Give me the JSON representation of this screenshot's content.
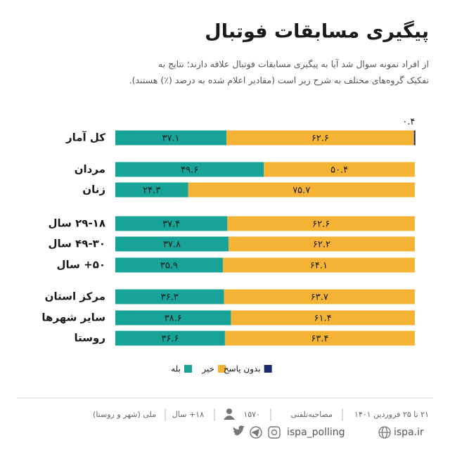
{
  "chart_data": {
    "type": "stacked-barh",
    "title": "پیگیری مسابقات فوتبال",
    "subtitle": [
      "از افراد نمونه سوال شد آیا به پیگیری مسابقات فوتبال علاقه دارند؛ نتایج به",
      "تفکیک گروه‌های مختلف به شرح زیر است (مقادیر اعلام شده به درصد (٪) هستند)."
    ],
    "categories": [
      "کل آمار",
      "مردان",
      "زنان",
      "۲۹-۱۸ سال",
      "۴۹-۳۰ سال",
      "۵۰+ سال",
      "مرکز استان",
      "سایر شهرها",
      "روستا"
    ],
    "xlim": [
      0,
      100
    ],
    "series": [
      {
        "name": "بله",
        "color": "#17a398",
        "values": [
          37.1,
          49.6,
          24.3,
          37.4,
          37.8,
          35.9,
          36.3,
          38.6,
          36.6
        ],
        "value_labels": [
          "۳۷.۱",
          "۴۹.۶",
          "۲۴.۳",
          "۳۷.۴",
          "۳۷.۸",
          "۳۵.۹",
          "۳۶.۳",
          "۳۸.۶",
          "۳۶.۶"
        ]
      },
      {
        "name": "خیر",
        "color": "#f5b335",
        "values": [
          62.6,
          50.4,
          75.7,
          62.6,
          62.2,
          64.1,
          63.7,
          61.4,
          63.4
        ],
        "value_labels": [
          "۶۲.۶",
          "۵۰.۴",
          "۷۵.۷",
          "۶۲.۶",
          "۶۲.۲",
          "۶۴.۱",
          "۶۳.۷",
          "۶۱.۴",
          "۶۳.۴"
        ]
      },
      {
        "name": "بدون پاسخ",
        "color": "#1b2a6b",
        "values": [
          0.4,
          null,
          null,
          null,
          null,
          null,
          null,
          null,
          null
        ],
        "value_labels": [
          "۰.۴",
          null,
          null,
          null,
          null,
          null,
          null,
          null,
          null
        ]
      }
    ]
  },
  "footer": {
    "date": "۲۱ تا ۲۵ فروردین ۱۴۰۱",
    "method": "مصاحبه‌تلفنی",
    "sample": "۱۵۷۰",
    "age": "۱۸+ سال",
    "scope": "ملی (شهر و روستا)",
    "site": "ispa.ir",
    "handle": "ispa_polling"
  }
}
